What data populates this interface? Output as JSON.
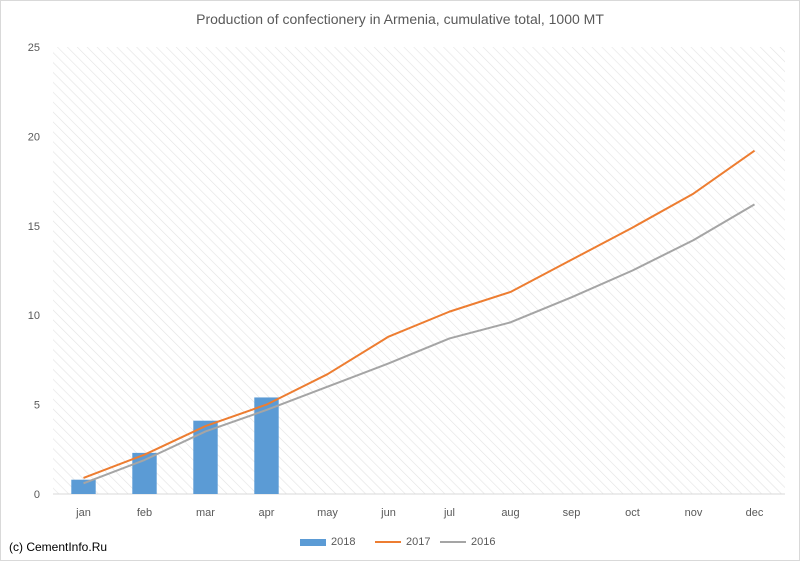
{
  "chart_data": {
    "type": "bar+line",
    "title": "Production of confectionery in Armenia, cumulative total, 1000 MT",
    "categories": [
      "jan",
      "feb",
      "mar",
      "apr",
      "may",
      "jun",
      "jul",
      "aug",
      "sep",
      "oct",
      "nov",
      "dec"
    ],
    "series": [
      {
        "name": "2018",
        "type": "bar",
        "color": "#5b9bd5",
        "values": [
          0.8,
          2.3,
          4.1,
          5.4,
          null,
          null,
          null,
          null,
          null,
          null,
          null,
          null
        ]
      },
      {
        "name": "2017",
        "type": "line",
        "color": "#ed7d31",
        "values": [
          0.9,
          2.2,
          3.8,
          5.0,
          6.7,
          8.8,
          10.2,
          11.3,
          13.1,
          14.9,
          16.8,
          19.2
        ]
      },
      {
        "name": "2016",
        "type": "line",
        "color": "#a5a5a5",
        "values": [
          0.6,
          1.9,
          3.5,
          4.7,
          6.0,
          7.3,
          8.7,
          9.6,
          11.0,
          12.5,
          14.2,
          16.2
        ]
      }
    ],
    "yticks": [
      "0",
      "5",
      "10",
      "15",
      "20",
      "25"
    ],
    "ylim": [
      0,
      25
    ],
    "grid": false,
    "background_pattern": "diagonal-hatch",
    "legend": "bottom"
  },
  "copyright": "(c) CementInfo.Ru"
}
